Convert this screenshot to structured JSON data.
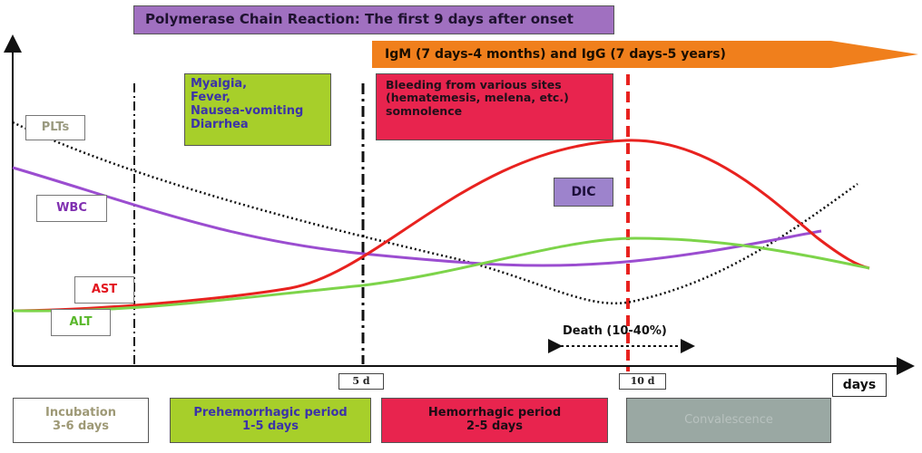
{
  "banner": {
    "pcr": "Polymerase Chain Reaction: The first 9 days after onset"
  },
  "antibodies": {
    "text": "IgM (7 days-4 months)  and IgG (7 days-5 years)"
  },
  "symptoms": {
    "lines": [
      "Myalgia,",
      "Fever,",
      "Nausea-vomiting",
      "Diarrhea"
    ]
  },
  "bleeding": {
    "lines": [
      "Bleeding from various sites",
      "(hematemesis, melena, etc.)",
      "somnolence"
    ]
  },
  "dic": {
    "label": "DIC"
  },
  "curves": {
    "plts": {
      "label": "PLTs",
      "color": "#111111"
    },
    "wbc": {
      "label": "WBC",
      "color": "#9b4dd0"
    },
    "ast": {
      "label": "AST",
      "color": "#e8221f"
    },
    "alt": {
      "label": "ALT",
      "color": "#7dd44a"
    }
  },
  "axis": {
    "tick_5d": "5 d",
    "tick_10d": "10 d",
    "x_label": "days"
  },
  "death": {
    "label": "Death (10-40%)"
  },
  "periods": {
    "incubation": "Incubation\n3-6 days",
    "prehemorrhagic": "Prehemorrhagic period\n1-5 days",
    "hemorrhagic": "Hemorrhagic period\n2-5 days",
    "convalescence": "Convalescence"
  }
}
